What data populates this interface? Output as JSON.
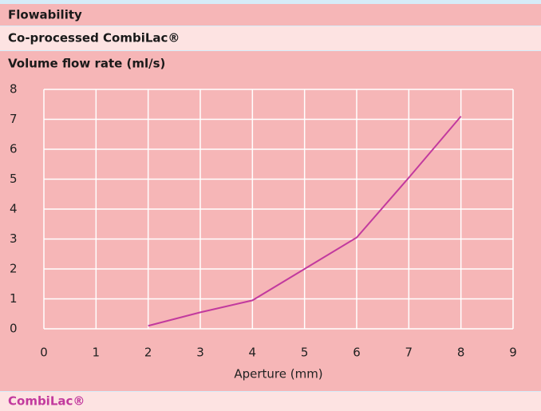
{
  "header": {
    "title": "Flowability",
    "subtitle": "Co-processed CombiLac®"
  },
  "chart_data": {
    "type": "line",
    "title": "Volume flow rate (ml/s)",
    "x_label": "Aperture (mm)",
    "x": [
      2,
      3,
      4,
      5,
      6,
      7,
      8
    ],
    "series": [
      {
        "name": "CombiLac®",
        "color": "#c23a9e",
        "values": [
          0.1,
          0.55,
          0.95,
          2,
          3.05,
          5.05,
          7.1
        ]
      }
    ],
    "xlim": [
      0,
      9
    ],
    "xticks": [
      0,
      1,
      2,
      3,
      4,
      5,
      6,
      7,
      8,
      9
    ],
    "ylim": [
      0,
      8
    ],
    "yticks": [
      0,
      1,
      2,
      3,
      4,
      5,
      6,
      7,
      8
    ],
    "grid": true
  }
}
